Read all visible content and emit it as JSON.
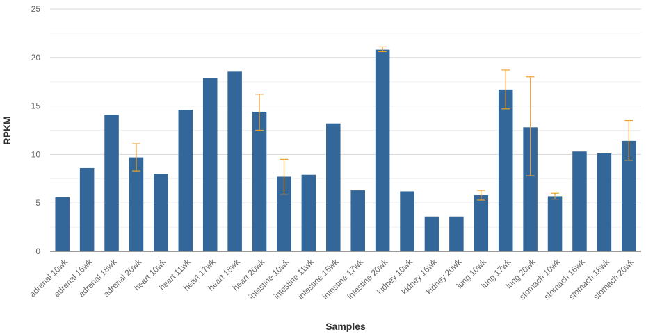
{
  "chart_data": {
    "type": "bar",
    "title": "",
    "xlabel": "Samples",
    "ylabel": "RPKM",
    "ylim": [
      0,
      25
    ],
    "yticks": [
      0,
      5,
      10,
      15,
      20,
      25
    ],
    "grid": true,
    "colors": {
      "bar": "#336699",
      "error_bar": "#f0a030",
      "grid": "#d8d8d8",
      "axis": "#333333"
    },
    "categories": [
      "adrenal 10wk",
      "adrenal 16wk",
      "adrenal 18wk",
      "adrenal 20wk",
      "heart 10wk",
      "heart 11wk",
      "heart 17wk",
      "heart 18wk",
      "heart 20wk",
      "intestine 10wk",
      "intestine 11wk",
      "intestine 15wk",
      "intestine 17wk",
      "intestine 20wk",
      "kidney 10wk",
      "kidney 16wk",
      "kidney 20wk",
      "lung 10wk",
      "lung 17wk",
      "lung 20wk",
      "stomach 10wk",
      "stomach 16wk",
      "stomach 18wk",
      "stomach 20wk"
    ],
    "values": [
      5.6,
      8.6,
      14.1,
      9.7,
      8.0,
      14.6,
      17.9,
      18.6,
      14.4,
      7.7,
      7.9,
      13.2,
      6.3,
      20.8,
      6.2,
      3.6,
      3.6,
      5.8,
      16.7,
      12.8,
      5.7,
      10.3,
      10.1,
      11.4
    ],
    "error_bars": [
      null,
      null,
      null,
      [
        8.3,
        11.1
      ],
      null,
      null,
      null,
      null,
      [
        12.5,
        16.2
      ],
      [
        5.9,
        9.5
      ],
      null,
      null,
      null,
      [
        20.6,
        21.1
      ],
      null,
      null,
      null,
      [
        5.3,
        6.3
      ],
      [
        14.7,
        18.7
      ],
      [
        7.8,
        18.0
      ],
      [
        5.4,
        6.0
      ],
      null,
      null,
      [
        9.4,
        13.5
      ]
    ]
  }
}
